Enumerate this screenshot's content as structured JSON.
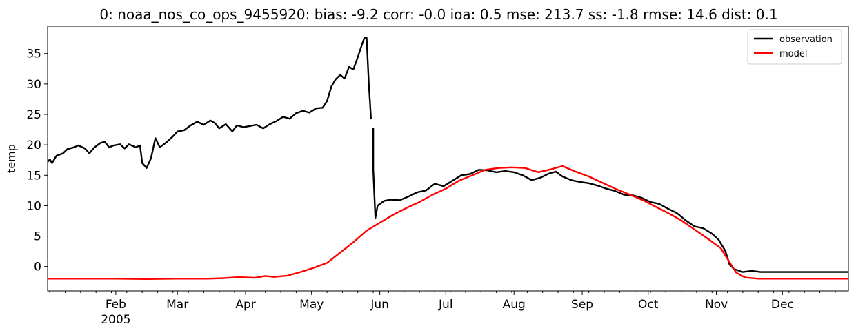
{
  "chart_data": {
    "type": "line",
    "title": "0: noaa_nos_co_ops_9455920: bias: -9.2  corr: -0.0  ioa: 0.5  mse: 213.7  ss: -1.8  rmse: 14.6  dist: 0.1",
    "xlabel": "",
    "ylabel": "temp",
    "xlim": [
      "2005-01-01",
      "2005-12-31"
    ],
    "ylim": [
      -4,
      39.5
    ],
    "y_ticks": [
      0,
      5,
      10,
      15,
      20,
      25,
      30,
      35
    ],
    "x_ticks": [
      {
        "date": "2005-02-01",
        "label": "Feb",
        "sublabel": "2005"
      },
      {
        "date": "2005-03-01",
        "label": "Mar",
        "sublabel": ""
      },
      {
        "date": "2005-04-01",
        "label": "Apr",
        "sublabel": ""
      },
      {
        "date": "2005-05-01",
        "label": "May",
        "sublabel": ""
      },
      {
        "date": "2005-06-01",
        "label": "Jun",
        "sublabel": ""
      },
      {
        "date": "2005-07-01",
        "label": "Jul",
        "sublabel": ""
      },
      {
        "date": "2005-08-01",
        "label": "Aug",
        "sublabel": ""
      },
      {
        "date": "2005-09-01",
        "label": "Sep",
        "sublabel": ""
      },
      {
        "date": "2005-10-01",
        "label": "Oct",
        "sublabel": ""
      },
      {
        "date": "2005-11-01",
        "label": "Nov",
        "sublabel": ""
      },
      {
        "date": "2005-12-01",
        "label": "Dec",
        "sublabel": ""
      }
    ],
    "grid": false,
    "legend": "top-right",
    "series": [
      {
        "name": "observation",
        "color": "#000000",
        "segments": [
          [
            [
              "2005-01-01",
              17.2
            ],
            [
              "2005-01-02",
              17.6
            ],
            [
              "2005-01-03",
              17.0
            ],
            [
              "2005-01-05",
              18.2
            ],
            [
              "2005-01-08",
              18.6
            ],
            [
              "2005-01-10",
              19.3
            ],
            [
              "2005-01-13",
              19.6
            ],
            [
              "2005-01-15",
              19.9
            ],
            [
              "2005-01-18",
              19.4
            ],
            [
              "2005-01-20",
              18.6
            ],
            [
              "2005-01-22",
              19.5
            ],
            [
              "2005-01-25",
              20.3
            ],
            [
              "2005-01-27",
              20.5
            ],
            [
              "2005-01-29",
              19.6
            ],
            [
              "2005-01-31",
              19.9
            ],
            [
              "2005-02-03",
              20.1
            ],
            [
              "2005-02-05",
              19.4
            ],
            [
              "2005-02-07",
              20.1
            ],
            [
              "2005-02-10",
              19.6
            ],
            [
              "2005-02-12",
              19.9
            ],
            [
              "2005-02-13",
              17.0
            ],
            [
              "2005-02-15",
              16.2
            ],
            [
              "2005-02-17",
              17.8
            ],
            [
              "2005-02-19",
              21.1
            ],
            [
              "2005-02-21",
              19.6
            ],
            [
              "2005-02-24",
              20.4
            ],
            [
              "2005-02-27",
              21.4
            ],
            [
              "2005-03-01",
              22.2
            ],
            [
              "2005-03-04",
              22.4
            ],
            [
              "2005-03-07",
              23.2
            ],
            [
              "2005-03-10",
              23.8
            ],
            [
              "2005-03-13",
              23.3
            ],
            [
              "2005-03-16",
              24.0
            ],
            [
              "2005-03-18",
              23.6
            ],
            [
              "2005-03-20",
              22.7
            ],
            [
              "2005-03-23",
              23.4
            ],
            [
              "2005-03-26",
              22.2
            ],
            [
              "2005-03-28",
              23.2
            ],
            [
              "2005-03-31",
              22.9
            ],
            [
              "2005-04-03",
              23.1
            ],
            [
              "2005-04-06",
              23.3
            ],
            [
              "2005-04-09",
              22.7
            ],
            [
              "2005-04-12",
              23.4
            ],
            [
              "2005-04-15",
              23.9
            ],
            [
              "2005-04-18",
              24.6
            ],
            [
              "2005-04-21",
              24.3
            ],
            [
              "2005-04-24",
              25.2
            ],
            [
              "2005-04-27",
              25.6
            ],
            [
              "2005-04-30",
              25.3
            ],
            [
              "2005-05-03",
              26.0
            ],
            [
              "2005-05-06",
              26.1
            ],
            [
              "2005-05-08",
              27.2
            ],
            [
              "2005-05-10",
              29.6
            ],
            [
              "2005-05-12",
              30.8
            ],
            [
              "2005-05-14",
              31.5
            ],
            [
              "2005-05-16",
              30.9
            ],
            [
              "2005-05-18",
              32.8
            ],
            [
              "2005-05-20",
              32.4
            ],
            [
              "2005-05-22",
              34.4
            ],
            [
              "2005-05-24",
              36.6
            ],
            [
              "2005-05-25",
              37.6
            ],
            [
              "2005-05-26",
              37.6
            ],
            [
              "2005-05-27",
              30.0
            ],
            [
              "2005-05-28",
              24.2
            ]
          ],
          [
            [
              "2005-05-29",
              22.8
            ],
            [
              "2005-05-29",
              16.0
            ],
            [
              "2005-05-30",
              8.0
            ],
            [
              "2005-05-31",
              10.0
            ],
            [
              "2005-06-03",
              10.8
            ],
            [
              "2005-06-06",
              11.0
            ],
            [
              "2005-06-10",
              10.9
            ],
            [
              "2005-06-14",
              11.5
            ],
            [
              "2005-06-18",
              12.2
            ],
            [
              "2005-06-22",
              12.5
            ],
            [
              "2005-06-26",
              13.6
            ],
            [
              "2005-06-30",
              13.2
            ],
            [
              "2005-07-04",
              14.1
            ],
            [
              "2005-07-08",
              15.0
            ],
            [
              "2005-07-12",
              15.2
            ],
            [
              "2005-07-16",
              15.9
            ],
            [
              "2005-07-20",
              15.8
            ],
            [
              "2005-07-24",
              15.5
            ],
            [
              "2005-07-28",
              15.7
            ],
            [
              "2005-08-01",
              15.5
            ],
            [
              "2005-08-05",
              15.0
            ],
            [
              "2005-08-09",
              14.2
            ],
            [
              "2005-08-13",
              14.6
            ],
            [
              "2005-08-17",
              15.3
            ],
            [
              "2005-08-20",
              15.6
            ],
            [
              "2005-08-23",
              14.8
            ],
            [
              "2005-08-27",
              14.2
            ],
            [
              "2005-08-31",
              13.9
            ],
            [
              "2005-09-04",
              13.7
            ],
            [
              "2005-09-08",
              13.3
            ],
            [
              "2005-09-12",
              12.8
            ],
            [
              "2005-09-16",
              12.4
            ],
            [
              "2005-09-20",
              11.8
            ],
            [
              "2005-09-24",
              11.7
            ],
            [
              "2005-09-28",
              11.3
            ],
            [
              "2005-10-02",
              10.6
            ],
            [
              "2005-10-06",
              10.3
            ],
            [
              "2005-10-10",
              9.5
            ],
            [
              "2005-10-14",
              8.8
            ],
            [
              "2005-10-18",
              7.6
            ],
            [
              "2005-10-22",
              6.6
            ],
            [
              "2005-10-26",
              6.3
            ],
            [
              "2005-10-30",
              5.4
            ],
            [
              "2005-11-02",
              4.4
            ],
            [
              "2005-11-05",
              2.6
            ],
            [
              "2005-11-07",
              0.3
            ],
            [
              "2005-11-09",
              -0.4
            ],
            [
              "2005-11-13",
              -0.9
            ],
            [
              "2005-11-17",
              -0.7
            ],
            [
              "2005-11-21",
              -0.9
            ],
            [
              "2005-12-01",
              -0.9
            ],
            [
              "2005-12-15",
              -0.9
            ],
            [
              "2005-12-31",
              -0.9
            ]
          ]
        ]
      },
      {
        "name": "model",
        "color": "#ff0000",
        "segments": [
          [
            [
              "2005-01-01",
              -2.0
            ],
            [
              "2005-01-15",
              -2.0
            ],
            [
              "2005-02-01",
              -2.0
            ],
            [
              "2005-02-15",
              -2.05
            ],
            [
              "2005-03-01",
              -2.0
            ],
            [
              "2005-03-15",
              -2.0
            ],
            [
              "2005-03-22",
              -1.9
            ],
            [
              "2005-03-29",
              -1.75
            ],
            [
              "2005-04-05",
              -1.85
            ],
            [
              "2005-04-10",
              -1.55
            ],
            [
              "2005-04-14",
              -1.7
            ],
            [
              "2005-04-20",
              -1.5
            ],
            [
              "2005-04-26",
              -0.9
            ],
            [
              "2005-05-02",
              -0.2
            ],
            [
              "2005-05-08",
              0.6
            ],
            [
              "2005-05-14",
              2.3
            ],
            [
              "2005-05-20",
              4.0
            ],
            [
              "2005-05-26",
              5.9
            ],
            [
              "2005-06-01",
              7.2
            ],
            [
              "2005-06-07",
              8.5
            ],
            [
              "2005-06-13",
              9.6
            ],
            [
              "2005-06-19",
              10.6
            ],
            [
              "2005-06-25",
              11.8
            ],
            [
              "2005-07-01",
              12.8
            ],
            [
              "2005-07-07",
              14.1
            ],
            [
              "2005-07-13",
              15.0
            ],
            [
              "2005-07-19",
              15.9
            ],
            [
              "2005-07-25",
              16.2
            ],
            [
              "2005-07-31",
              16.3
            ],
            [
              "2005-08-06",
              16.2
            ],
            [
              "2005-08-12",
              15.5
            ],
            [
              "2005-08-18",
              16.0
            ],
            [
              "2005-08-23",
              16.5
            ],
            [
              "2005-08-29",
              15.6
            ],
            [
              "2005-09-04",
              14.8
            ],
            [
              "2005-09-10",
              13.8
            ],
            [
              "2005-09-16",
              12.8
            ],
            [
              "2005-09-22",
              11.9
            ],
            [
              "2005-09-28",
              11.0
            ],
            [
              "2005-10-04",
              9.9
            ],
            [
              "2005-10-10",
              8.8
            ],
            [
              "2005-10-16",
              7.6
            ],
            [
              "2005-10-22",
              6.1
            ],
            [
              "2005-10-28",
              4.6
            ],
            [
              "2005-11-03",
              3.0
            ],
            [
              "2005-11-07",
              0.7
            ],
            [
              "2005-11-10",
              -1.0
            ],
            [
              "2005-11-14",
              -1.8
            ],
            [
              "2005-11-20",
              -2.0
            ],
            [
              "2005-12-01",
              -2.0
            ],
            [
              "2005-12-15",
              -2.0
            ],
            [
              "2005-12-31",
              -2.0
            ]
          ]
        ]
      }
    ]
  }
}
